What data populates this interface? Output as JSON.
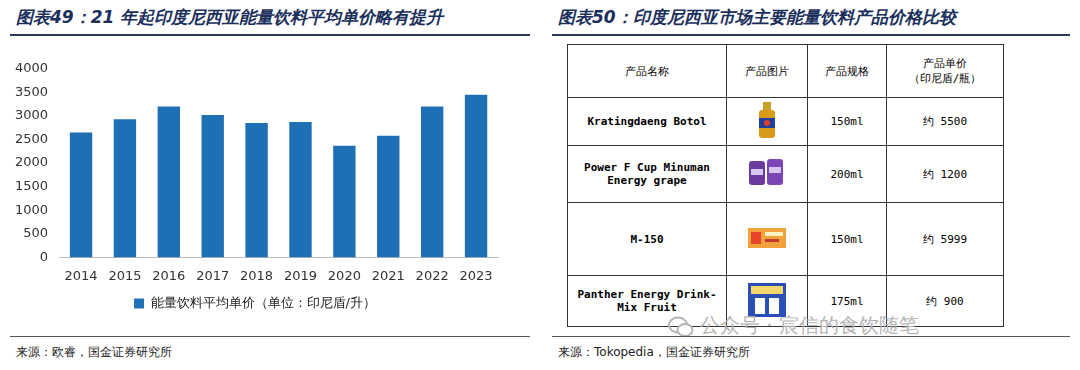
{
  "chart_data": {
    "type": "bar",
    "title": "图表49：21 年起印度尼西亚能量饮料平均单价略有提升",
    "categories": [
      "2014",
      "2015",
      "2016",
      "2017",
      "2018",
      "2019",
      "2020",
      "2021",
      "2022",
      "2023"
    ],
    "series": [
      {
        "name": "能量饮料平均单价（单位：印尼盾/升）",
        "color": "#1f6fb5",
        "values": [
          2650,
          2930,
          3200,
          3020,
          2850,
          2870,
          2370,
          2580,
          3200,
          3450
        ]
      }
    ],
    "ylim": [
      0,
      4000
    ],
    "yticks": [
      0,
      500,
      1000,
      1500,
      2000,
      2500,
      3000,
      3500,
      4000
    ],
    "grid": false,
    "legend": "bottom"
  },
  "chart_source": "来源：欧睿，国金证券研究所",
  "table_panel": {
    "title": "图表50：印度尼西亚市场主要能量饮料产品价格比较",
    "header": [
      "产品名称",
      "产品图片",
      "产品规格",
      "产品单价\n（印尼盾/瓶）"
    ],
    "rows": [
      {
        "name": "Kratingdaeng Botol",
        "spec": "150ml",
        "price": "约 5500"
      },
      {
        "name": "Power F Cup Minuman\nEnergy grape",
        "spec": "200ml",
        "price": "约 1200"
      },
      {
        "name": "M-150",
        "spec": "150ml",
        "price": "约 5999"
      },
      {
        "name": "Panther Energy Drink-\nMix Fruit",
        "spec": "175ml",
        "price": "约 900"
      }
    ],
    "source": "来源：Tokopedia，国金证券研究所"
  },
  "watermark": "公众号 · 宸信的食饮随笔"
}
